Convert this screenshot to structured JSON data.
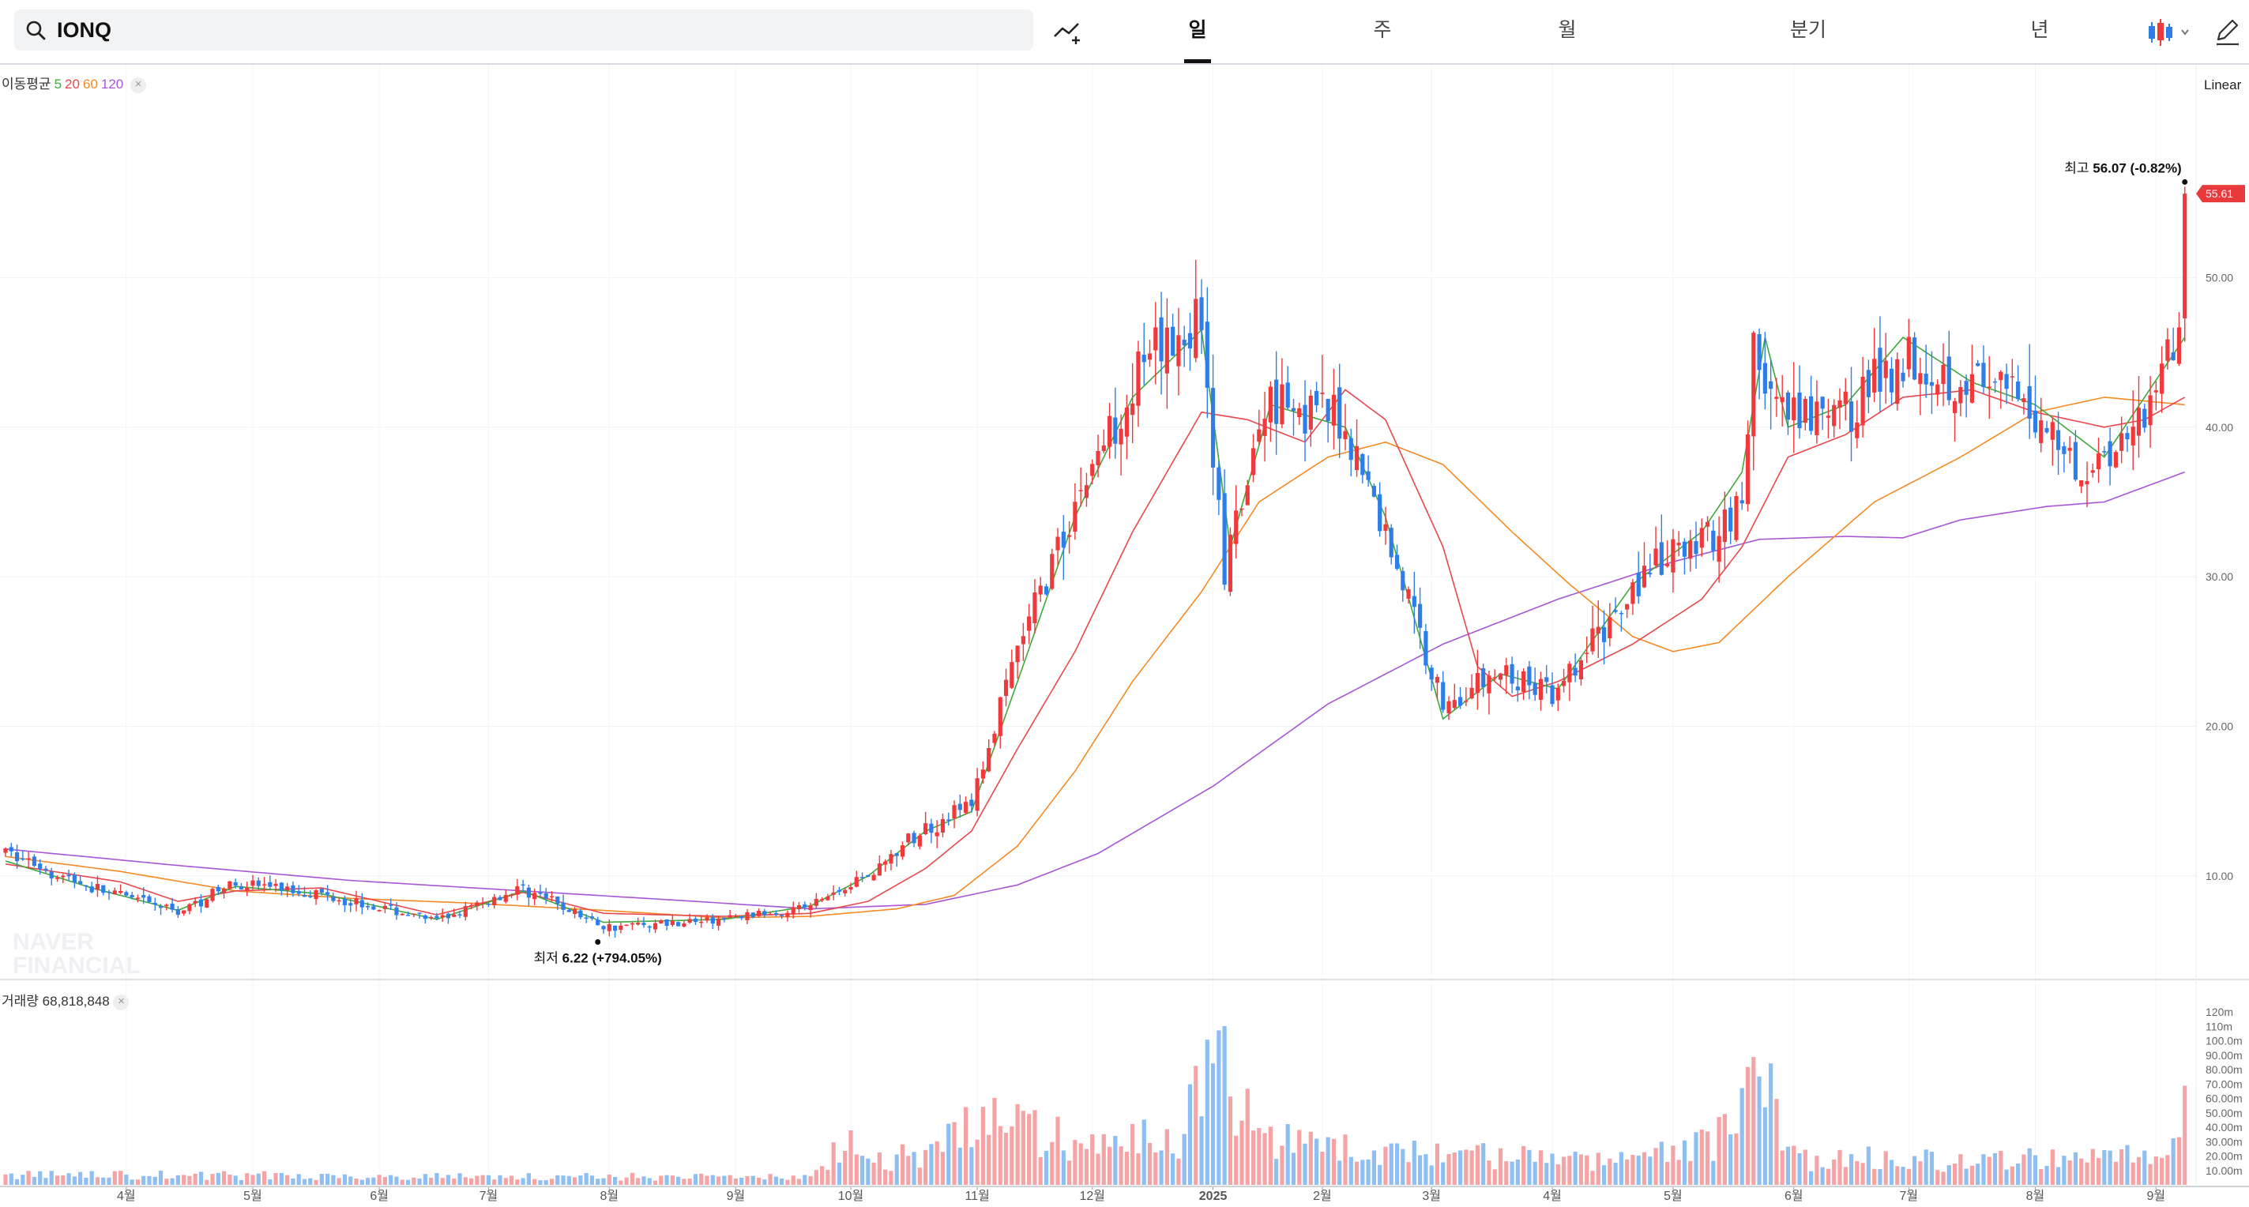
{
  "search": {
    "value": "IONQ",
    "icon": "search-icon"
  },
  "toolbar": {
    "indicator_icon": "add-indicator-icon",
    "tabs": [
      {
        "label": "일",
        "active": true
      },
      {
        "label": "주",
        "active": false
      },
      {
        "label": "월",
        "active": false
      },
      {
        "label": "분기",
        "active": false
      },
      {
        "label": "년",
        "active": false
      }
    ],
    "charttype_icon": "candlestick-icon",
    "edit_icon": "pencil-icon"
  },
  "legend": {
    "ma_title": "이동평균",
    "ma_periods": [
      "5",
      "20",
      "60",
      "120"
    ],
    "volume_title": "거래량",
    "volume_value": "68,818,848"
  },
  "scale_label": "Linear",
  "watermark": [
    "NAVER",
    "FINANCIAL"
  ],
  "colors": {
    "up": "#f0393c",
    "down": "#2f7ee8",
    "vol_up": "#f6a3a6",
    "vol_down": "#8fbff2",
    "ma5": "#3fa93c",
    "ma20": "#e8474c",
    "ma60": "#f58a24",
    "ma120": "#a756d6",
    "price_tag": "#e8393c"
  },
  "chart_data": {
    "type": "candlestick",
    "y_ticks": [
      "10.00",
      "20.00",
      "30.00",
      "40.00",
      "50.00"
    ],
    "ylim": [
      3.5,
      60
    ],
    "volume_ticks": [
      "10.00m",
      "20.00m",
      "30.00m",
      "40.00m",
      "50.00m",
      "60.00m",
      "70.00m",
      "80.00m",
      "90.00m",
      "100.0m",
      "110m",
      "120m"
    ],
    "volume_ylim": [
      0,
      125
    ],
    "x_labels": [
      "4월",
      "5월",
      "6월",
      "7월",
      "8월",
      "9월",
      "10월",
      "11월",
      "12월",
      "2025",
      "2월",
      "3월",
      "4월",
      "5월",
      "6월",
      "7월",
      "8월",
      "9월"
    ],
    "x_label_positions": [
      21,
      43,
      65,
      84,
      105,
      127,
      147,
      169,
      189,
      210,
      229,
      248,
      269,
      290,
      311,
      331,
      353,
      374
    ],
    "candle_count": 380,
    "close_keypoints": [
      [
        0,
        11.6
      ],
      [
        15,
        9.2
      ],
      [
        30,
        7.6
      ],
      [
        40,
        9.6
      ],
      [
        55,
        8.8
      ],
      [
        75,
        7.0
      ],
      [
        90,
        9.2
      ],
      [
        104,
        6.6
      ],
      [
        125,
        7.1
      ],
      [
        140,
        8.0
      ],
      [
        150,
        10.1
      ],
      [
        160,
        13.2
      ],
      [
        168,
        14.8
      ],
      [
        176,
        25.0
      ],
      [
        186,
        35.0
      ],
      [
        196,
        43.0
      ],
      [
        208,
        47.5
      ],
      [
        212,
        30.0
      ],
      [
        220,
        42.5
      ],
      [
        233,
        40.0
      ],
      [
        240,
        33.0
      ],
      [
        250,
        21.5
      ],
      [
        260,
        23.5
      ],
      [
        270,
        22.0
      ],
      [
        283,
        29.5
      ],
      [
        295,
        32.5
      ],
      [
        302,
        35.0
      ],
      [
        304,
        45.0
      ],
      [
        310,
        40.0
      ],
      [
        320,
        41.0
      ],
      [
        330,
        45.0
      ],
      [
        342,
        43.0
      ],
      [
        353,
        41.0
      ],
      [
        362,
        37.0
      ],
      [
        372,
        41.0
      ],
      [
        378,
        47.0
      ],
      [
        379,
        55.61
      ]
    ],
    "ma5_keypoints": [
      [
        0,
        11.0
      ],
      [
        15,
        9.2
      ],
      [
        30,
        7.7
      ],
      [
        40,
        9.3
      ],
      [
        55,
        8.8
      ],
      [
        75,
        7.1
      ],
      [
        90,
        9.0
      ],
      [
        104,
        6.9
      ],
      [
        125,
        7.1
      ],
      [
        140,
        8.0
      ],
      [
        150,
        10.0
      ],
      [
        160,
        13.0
      ],
      [
        168,
        14.3
      ],
      [
        176,
        23.0
      ],
      [
        186,
        34.0
      ],
      [
        196,
        42.0
      ],
      [
        208,
        46.5
      ],
      [
        213,
        32.0
      ],
      [
        220,
        41.5
      ],
      [
        233,
        40.0
      ],
      [
        240,
        34.0
      ],
      [
        250,
        20.5
      ],
      [
        260,
        23.5
      ],
      [
        270,
        22.5
      ],
      [
        283,
        29.5
      ],
      [
        295,
        33.0
      ],
      [
        302,
        37.0
      ],
      [
        306,
        46.0
      ],
      [
        310,
        40.0
      ],
      [
        320,
        41.5
      ],
      [
        330,
        46.0
      ],
      [
        342,
        43.0
      ],
      [
        353,
        41.5
      ],
      [
        365,
        38.0
      ],
      [
        372,
        42.0
      ],
      [
        379,
        46.0
      ]
    ],
    "ma20_keypoints": [
      [
        0,
        10.8
      ],
      [
        20,
        9.6
      ],
      [
        30,
        8.3
      ],
      [
        40,
        9.0
      ],
      [
        55,
        9.2
      ],
      [
        75,
        7.4
      ],
      [
        90,
        8.9
      ],
      [
        104,
        7.5
      ],
      [
        125,
        7.3
      ],
      [
        140,
        7.5
      ],
      [
        150,
        8.3
      ],
      [
        160,
        10.5
      ],
      [
        168,
        13.0
      ],
      [
        176,
        18.5
      ],
      [
        186,
        25.0
      ],
      [
        196,
        33.0
      ],
      [
        208,
        41.0
      ],
      [
        216,
        40.5
      ],
      [
        226,
        39.0
      ],
      [
        233,
        42.5
      ],
      [
        240,
        40.5
      ],
      [
        250,
        32.0
      ],
      [
        256,
        24.0
      ],
      [
        262,
        22.0
      ],
      [
        270,
        23.0
      ],
      [
        283,
        25.5
      ],
      [
        295,
        28.5
      ],
      [
        302,
        32.0
      ],
      [
        310,
        38.0
      ],
      [
        320,
        39.5
      ],
      [
        330,
        42.0
      ],
      [
        342,
        42.5
      ],
      [
        353,
        41.0
      ],
      [
        365,
        40.0
      ],
      [
        372,
        40.5
      ],
      [
        379,
        42.0
      ]
    ],
    "ma60_keypoints": [
      [
        0,
        11.3
      ],
      [
        20,
        10.3
      ],
      [
        40,
        9.0
      ],
      [
        60,
        8.5
      ],
      [
        80,
        8.2
      ],
      [
        104,
        7.7
      ],
      [
        125,
        7.2
      ],
      [
        140,
        7.3
      ],
      [
        155,
        7.8
      ],
      [
        165,
        8.7
      ],
      [
        176,
        12.0
      ],
      [
        186,
        17.0
      ],
      [
        196,
        23.0
      ],
      [
        208,
        29.0
      ],
      [
        218,
        35.0
      ],
      [
        230,
        38.0
      ],
      [
        240,
        39.0
      ],
      [
        250,
        37.5
      ],
      [
        262,
        33.0
      ],
      [
        272,
        29.5
      ],
      [
        283,
        26.0
      ],
      [
        290,
        25.0
      ],
      [
        298,
        25.6
      ],
      [
        310,
        30.0
      ],
      [
        325,
        35.0
      ],
      [
        340,
        38.0
      ],
      [
        353,
        41.0
      ],
      [
        365,
        42.0
      ],
      [
        379,
        41.5
      ]
    ],
    "ma120_keypoints": [
      [
        0,
        11.8
      ],
      [
        30,
        10.7
      ],
      [
        60,
        9.7
      ],
      [
        90,
        9.0
      ],
      [
        120,
        8.3
      ],
      [
        140,
        7.8
      ],
      [
        160,
        8.1
      ],
      [
        176,
        9.4
      ],
      [
        190,
        11.5
      ],
      [
        210,
        16.0
      ],
      [
        230,
        21.5
      ],
      [
        250,
        25.5
      ],
      [
        270,
        28.5
      ],
      [
        290,
        31.0
      ],
      [
        305,
        32.5
      ],
      [
        320,
        32.7
      ],
      [
        330,
        32.6
      ],
      [
        340,
        33.8
      ],
      [
        355,
        34.7
      ],
      [
        365,
        35.0
      ],
      [
        379,
        37.0
      ]
    ],
    "volume_keypoints": [
      [
        0,
        8
      ],
      [
        140,
        6
      ],
      [
        146,
        38
      ],
      [
        150,
        18
      ],
      [
        160,
        25
      ],
      [
        170,
        55
      ],
      [
        180,
        40
      ],
      [
        190,
        30
      ],
      [
        205,
        40
      ],
      [
        210,
        123
      ],
      [
        215,
        55
      ],
      [
        225,
        30
      ],
      [
        240,
        25
      ],
      [
        260,
        22
      ],
      [
        280,
        18
      ],
      [
        300,
        40
      ],
      [
        305,
        90
      ],
      [
        312,
        20
      ],
      [
        320,
        20
      ],
      [
        330,
        22
      ],
      [
        340,
        18
      ],
      [
        355,
        20
      ],
      [
        370,
        22
      ],
      [
        378,
        30
      ],
      [
        379,
        68.8
      ]
    ],
    "high": {
      "label": "최고",
      "value": "56.07",
      "change": "(-0.82%)",
      "index": 379
    },
    "low": {
      "label": "최저",
      "value": "6.22",
      "change": "(+794.05%)",
      "index": 103
    },
    "current_price": "55.61"
  }
}
